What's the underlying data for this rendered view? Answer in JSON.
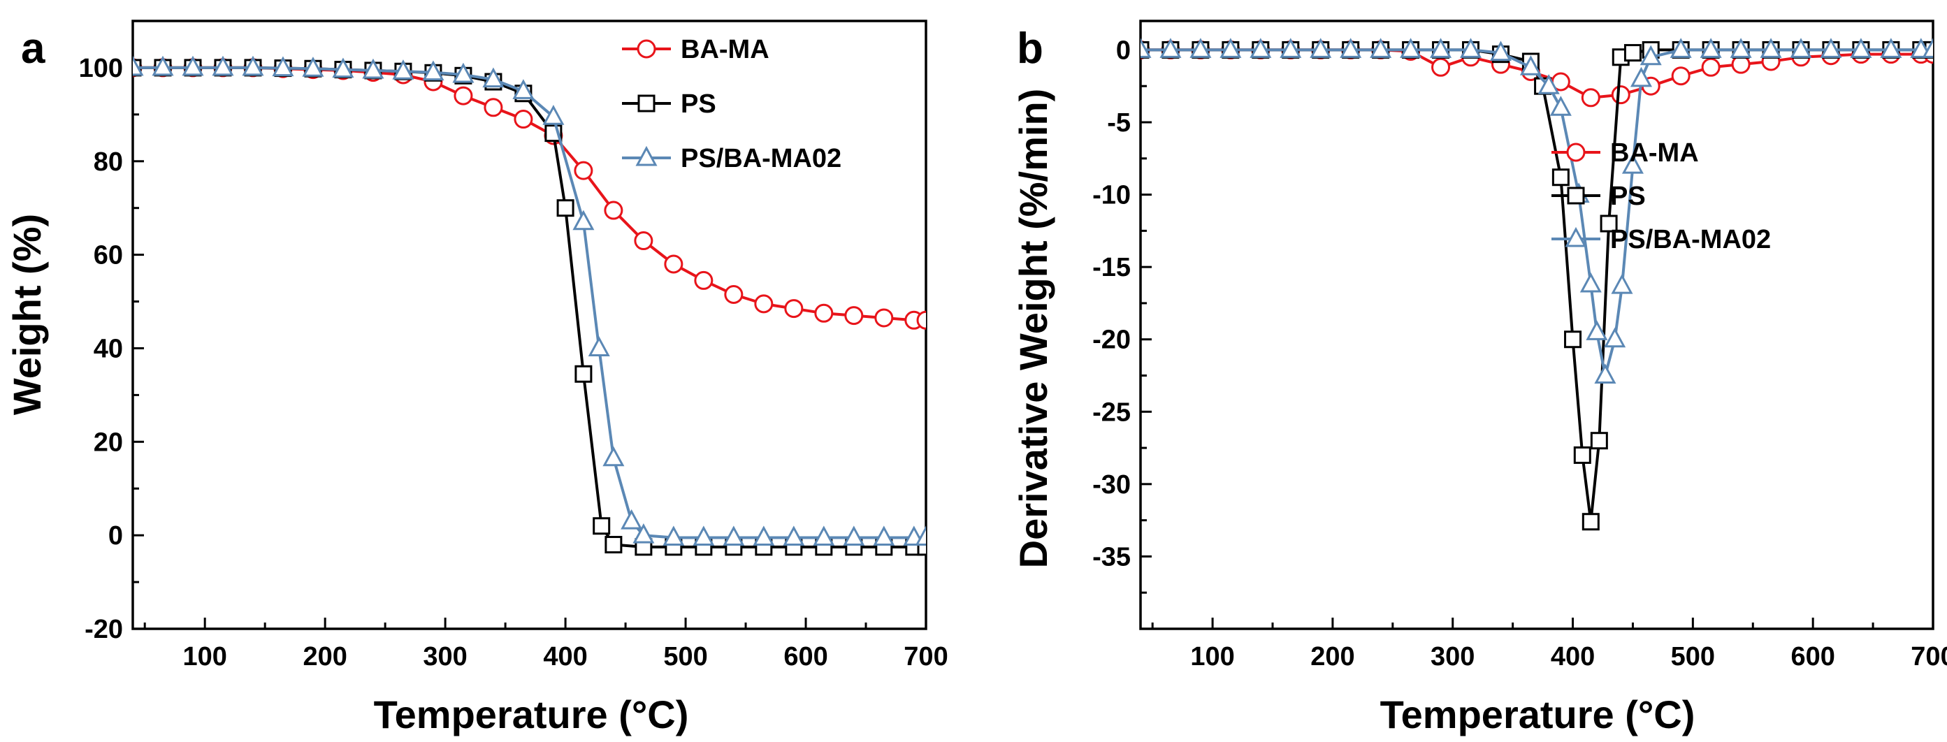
{
  "colors": {
    "ba_ma": "#e8141a",
    "ps": "#000000",
    "ps_ba_ma02": "#5b88b5"
  },
  "chart_data": [
    {
      "panel": "a",
      "type": "line",
      "title": "",
      "xlabel": "Temperature (°C)",
      "ylabel": "Weight (%)",
      "xlim": [
        40,
        700
      ],
      "ylim": [
        -20,
        110
      ],
      "xticks": [
        100,
        200,
        300,
        400,
        500,
        600,
        700
      ],
      "yticks": [
        -20,
        0,
        20,
        40,
        60,
        80,
        100
      ],
      "legend_position": "top-right",
      "series": [
        {
          "name": "BA-MA",
          "color": "ba_ma",
          "marker": "circle",
          "x": [
            40,
            65,
            90,
            115,
            140,
            165,
            190,
            215,
            240,
            265,
            290,
            315,
            340,
            365,
            390,
            415,
            440,
            465,
            490,
            515,
            540,
            565,
            590,
            615,
            640,
            665,
            690,
            700
          ],
          "y": [
            100,
            100,
            100,
            100,
            100,
            99.8,
            99.6,
            99.4,
            99,
            98.5,
            97,
            94,
            91.5,
            89,
            85.5,
            78,
            69.5,
            63,
            58,
            54.5,
            51.5,
            49.5,
            48.5,
            47.5,
            47,
            46.5,
            46,
            46
          ]
        },
        {
          "name": "PS",
          "color": "ps",
          "marker": "square",
          "x": [
            40,
            65,
            90,
            115,
            140,
            165,
            190,
            215,
            240,
            265,
            290,
            315,
            340,
            365,
            390,
            400,
            415,
            430,
            440,
            465,
            490,
            515,
            540,
            565,
            590,
            615,
            640,
            665,
            690,
            700
          ],
          "y": [
            100,
            100,
            100,
            100,
            100,
            99.9,
            99.8,
            99.6,
            99.4,
            99.2,
            98.9,
            98.3,
            97,
            94.5,
            86,
            70,
            34.5,
            2,
            -2,
            -2.5,
            -2.5,
            -2.5,
            -2.5,
            -2.5,
            -2.5,
            -2.5,
            -2.5,
            -2.5,
            -2.5,
            -2.5
          ]
        },
        {
          "name": "PS/BA-MA02",
          "color": "ps_ba_ma02",
          "marker": "triangle",
          "x": [
            40,
            65,
            90,
            115,
            140,
            165,
            190,
            215,
            240,
            265,
            290,
            315,
            340,
            365,
            390,
            415,
            428,
            440,
            455,
            465,
            490,
            515,
            540,
            565,
            590,
            615,
            640,
            665,
            690,
            700
          ],
          "y": [
            100,
            100,
            100,
            100,
            100,
            99.9,
            99.8,
            99.6,
            99.4,
            99.2,
            99,
            98.5,
            97.5,
            95,
            89.5,
            67,
            40,
            16.5,
            3,
            0,
            -0.5,
            -0.5,
            -0.5,
            -0.5,
            -0.5,
            -0.5,
            -0.5,
            -0.5,
            -0.5,
            -0.5
          ]
        }
      ]
    },
    {
      "panel": "b",
      "type": "line",
      "title": "",
      "xlabel": "Temperature (°C)",
      "ylabel": "Derivative Weight (%/min)",
      "xlim": [
        40,
        700
      ],
      "ylim": [
        -40,
        2
      ],
      "xticks": [
        100,
        200,
        300,
        400,
        500,
        600,
        700
      ],
      "yticks": [
        -35,
        -30,
        -25,
        -20,
        -15,
        -10,
        -5,
        0
      ],
      "legend_position": "center-right",
      "series": [
        {
          "name": "BA-MA",
          "color": "ba_ma",
          "marker": "circle",
          "x": [
            40,
            65,
            90,
            115,
            140,
            165,
            190,
            215,
            240,
            265,
            290,
            315,
            340,
            365,
            390,
            415,
            440,
            465,
            490,
            515,
            540,
            565,
            590,
            615,
            640,
            665,
            690,
            700
          ],
          "y": [
            0,
            0,
            0,
            0,
            0,
            0,
            0,
            0,
            0,
            -0.1,
            -1.2,
            -0.5,
            -1,
            -1.5,
            -2.2,
            -3.3,
            -3.1,
            -2.5,
            -1.8,
            -1.2,
            -1,
            -0.8,
            -0.5,
            -0.4,
            -0.3,
            -0.3,
            -0.3,
            -0.3
          ]
        },
        {
          "name": "PS",
          "color": "ps",
          "marker": "square",
          "x": [
            40,
            65,
            90,
            115,
            140,
            165,
            190,
            215,
            240,
            265,
            290,
            315,
            340,
            365,
            375,
            390,
            400,
            408,
            415,
            422,
            430,
            440,
            450,
            465,
            490,
            515,
            540,
            565,
            590,
            615,
            640,
            665,
            690,
            700
          ],
          "y": [
            0,
            0,
            0,
            0,
            0,
            0,
            0,
            0,
            0,
            0,
            0,
            0,
            -0.3,
            -0.8,
            -2.5,
            -8.8,
            -20,
            -28,
            -32.6,
            -27,
            -12,
            -0.5,
            -0.2,
            0,
            0,
            0,
            0,
            0,
            0,
            0,
            0,
            0,
            0,
            0
          ]
        },
        {
          "name": "PS/BA-MA02",
          "color": "ps_ba_ma02",
          "marker": "triangle",
          "x": [
            40,
            65,
            90,
            115,
            140,
            165,
            190,
            215,
            240,
            265,
            290,
            315,
            340,
            365,
            380,
            390,
            405,
            415,
            420,
            427,
            435,
            441,
            450,
            457,
            465,
            490,
            515,
            540,
            565,
            590,
            615,
            640,
            665,
            690,
            700
          ],
          "y": [
            0,
            0,
            0,
            0,
            0,
            0,
            0,
            0,
            0,
            0,
            0,
            0,
            -0.2,
            -1.2,
            -2.5,
            -4,
            -10,
            -16.2,
            -19.5,
            -22.5,
            -20,
            -16.3,
            -8,
            -2,
            -0.5,
            0,
            0,
            0,
            0,
            0,
            0,
            0,
            0,
            0,
            0
          ]
        }
      ]
    }
  ]
}
